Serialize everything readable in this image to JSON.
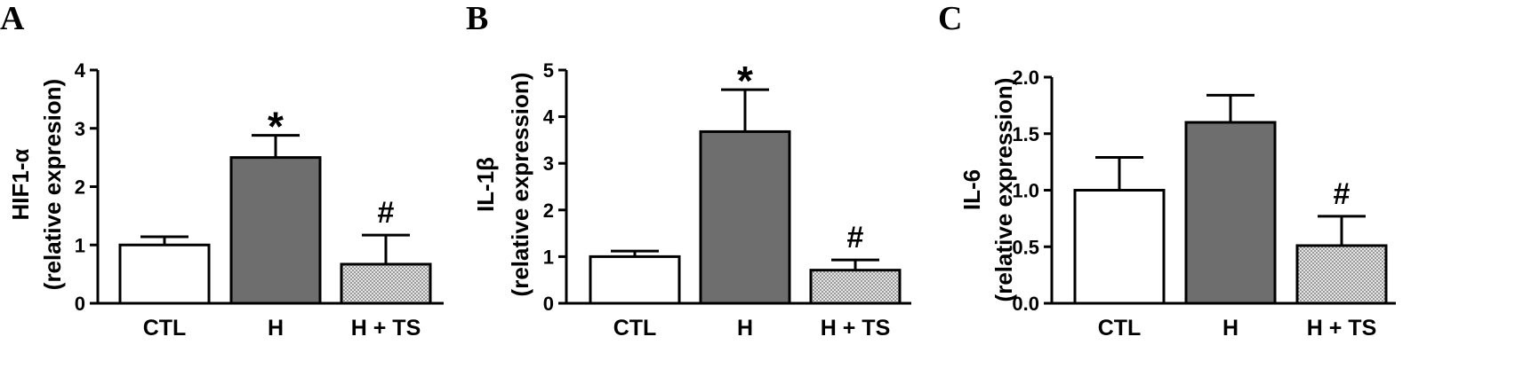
{
  "colors": {
    "axis": "#000000",
    "ctl_fill": "#ffffff",
    "h_fill": "#6e6e6e",
    "hts_fill": "#cccccc"
  },
  "chart_data": [
    {
      "type": "bar",
      "panel": "A",
      "categories": [
        "CTL",
        "H",
        "H + TS"
      ],
      "values": [
        1.0,
        2.5,
        0.67
      ],
      "errors": [
        0.14,
        0.38,
        0.5
      ],
      "annotations": [
        "",
        "*",
        "#"
      ],
      "ylabel_line1": "HIF1-α",
      "ylabel_line2": "(relative expresion)",
      "ylim": [
        0,
        4
      ],
      "yticks": [
        0,
        1,
        2,
        3,
        4
      ],
      "ytick_labels": [
        "0",
        "1",
        "2",
        "3",
        "4"
      ],
      "bar_styles": [
        "open",
        "solid-gray",
        "checkered"
      ],
      "grid": false
    },
    {
      "type": "bar",
      "panel": "B",
      "categories": [
        "CTL",
        "H",
        "H + TS"
      ],
      "values": [
        1.0,
        3.68,
        0.71
      ],
      "errors": [
        0.12,
        0.9,
        0.22
      ],
      "annotations": [
        "",
        "*",
        "#"
      ],
      "ylabel_line1": "IL-1β",
      "ylabel_line2": "(relative expression)",
      "ylim": [
        0,
        5
      ],
      "yticks": [
        0,
        1,
        2,
        3,
        4,
        5
      ],
      "ytick_labels": [
        "0",
        "1",
        "2",
        "3",
        "4",
        "5"
      ],
      "bar_styles": [
        "open",
        "solid-gray",
        "checkered"
      ],
      "grid": false
    },
    {
      "type": "bar",
      "panel": "C",
      "categories": [
        "CTL",
        "H",
        "H + TS"
      ],
      "values": [
        1.0,
        1.6,
        0.51
      ],
      "errors": [
        0.29,
        0.24,
        0.26
      ],
      "annotations": [
        "",
        "",
        "#"
      ],
      "ylabel_line1": "IL-6",
      "ylabel_line2": "(relative expression)",
      "ylim": [
        0,
        2
      ],
      "yticks": [
        0,
        0.5,
        1,
        1.5,
        2
      ],
      "ytick_labels": [
        "0.0",
        "0.5",
        "1.0",
        "1.5",
        "2.0"
      ],
      "bar_styles": [
        "open",
        "solid-gray",
        "checkered"
      ],
      "grid": false
    }
  ]
}
